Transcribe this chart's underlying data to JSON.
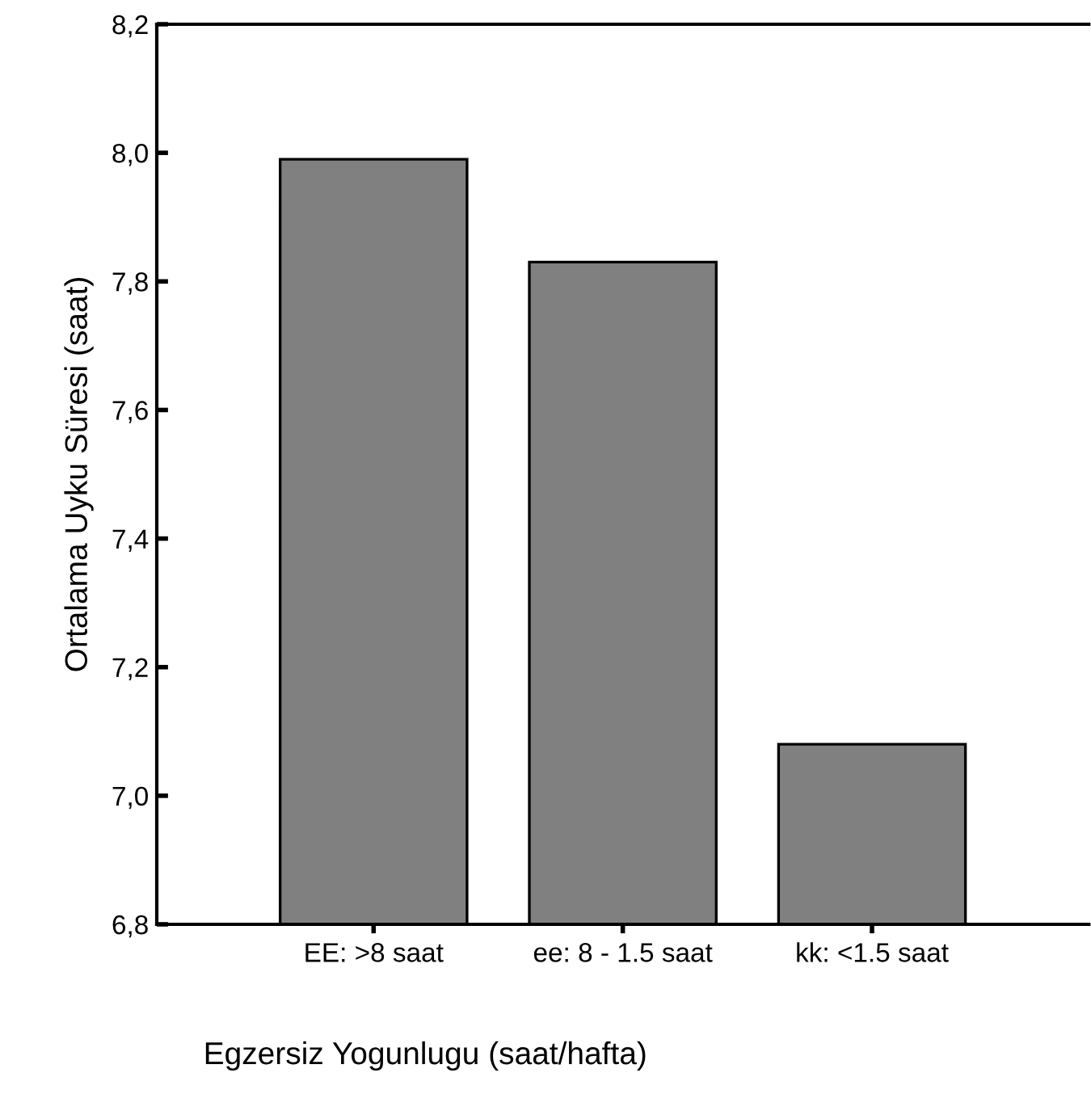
{
  "chart_data": {
    "type": "bar",
    "xlabel": "Egzersiz Yogunlugu (saat/hafta)",
    "ylabel": "Ortalama Uyku Süresi (saat)",
    "categories": [
      "EE: >8 saat",
      "ee: 8 - 1.5 saat",
      "kk: <1.5 saat"
    ],
    "values": [
      7.99,
      7.83,
      7.08
    ],
    "color": "#808080",
    "ylim": [
      6.8,
      8.2
    ],
    "yticks": [
      {
        "value": 6.8,
        "label": "6,8"
      },
      {
        "value": 7.0,
        "label": "7,0"
      },
      {
        "value": 7.2,
        "label": "7,2"
      },
      {
        "value": 7.4,
        "label": "7,4"
      },
      {
        "value": 7.6,
        "label": "7,6"
      },
      {
        "value": 7.8,
        "label": "7,8"
      },
      {
        "value": 8.0,
        "label": "8,0"
      },
      {
        "value": 8.2,
        "label": "8,2"
      }
    ],
    "grid": false
  }
}
